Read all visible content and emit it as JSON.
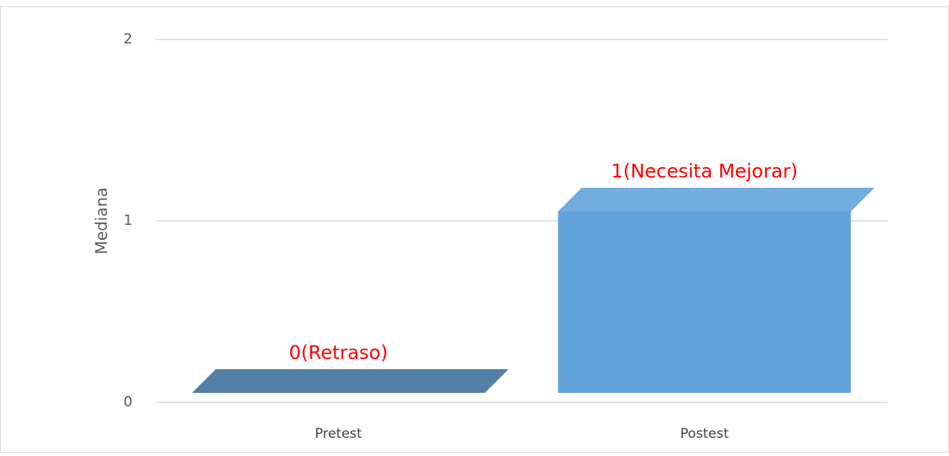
{
  "chart_data": {
    "type": "bar",
    "y_label": "Mediana",
    "categories": [
      "Pretest",
      "Postest"
    ],
    "values": [
      0,
      1
    ],
    "value_labels": [
      "0(Retraso)",
      "1(Necesita Mejorar)"
    ],
    "colors": [
      "#41719c",
      "#62a2dc"
    ],
    "label_color": "#ff0000",
    "ylim": [
      0,
      2
    ],
    "yticks": [
      0,
      1,
      2
    ],
    "grid": true
  }
}
